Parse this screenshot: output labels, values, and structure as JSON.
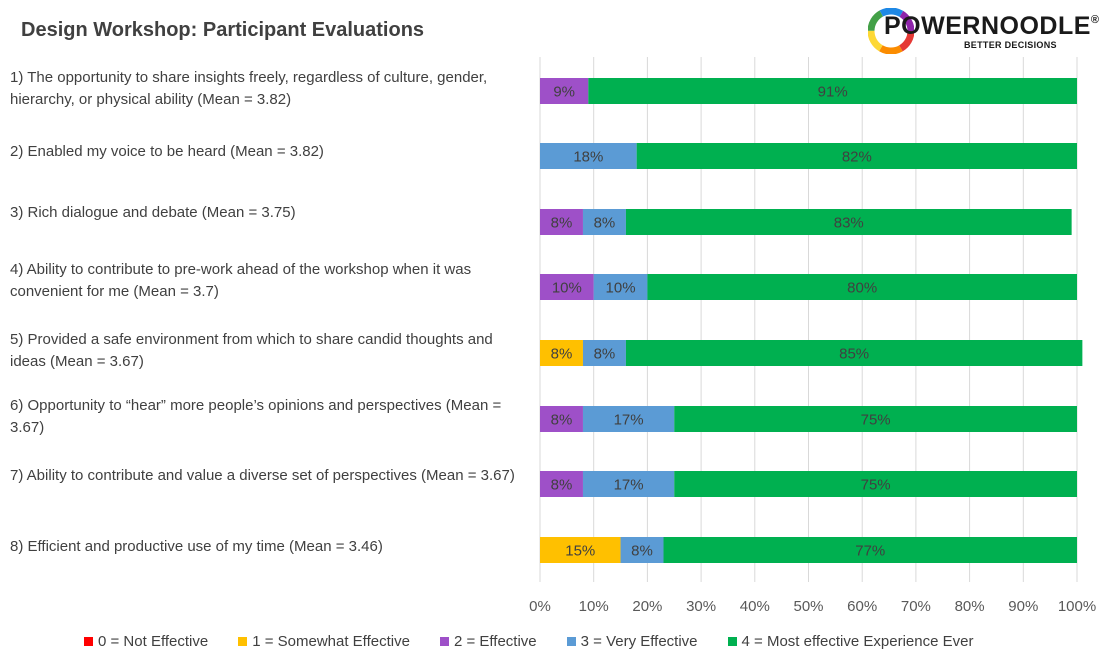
{
  "brand": {
    "name": "POWERNOODLE",
    "registered": "®",
    "tagline": "BETTER DECISIONS"
  },
  "chart_data": {
    "type": "bar",
    "orientation": "horizontal",
    "stacked": true,
    "title": "Design Workshop: Participant Evaluations",
    "categories": [
      "1) The opportunity to share insights freely, regardless of culture, gender, hierarchy, or physical ability (Mean = 3.82)",
      "2) Enabled my voice to be heard (Mean = 3.82)",
      "3) Rich dialogue and debate (Mean = 3.75)",
      "4) Ability to contribute to pre-work ahead of the workshop when it was convenient for me (Mean = 3.7)",
      "5) Provided a safe environment from which to share candid thoughts and ideas (Mean = 3.67)",
      "6) Opportunity to “hear” more people’s opinions and perspectives (Mean = 3.67)",
      "7) Ability to contribute and value a diverse set of perspectives (Mean = 3.67)",
      "8) Efficient and productive use of my time (Mean = 3.46)"
    ],
    "series": [
      {
        "name": "0 = Not Effective",
        "color": "#ff0000",
        "values": [
          0,
          0,
          0,
          0,
          0,
          0,
          0,
          0
        ]
      },
      {
        "name": "1 = Somewhat Effective",
        "color": "#ffc000",
        "values": [
          0,
          0,
          0,
          0,
          8,
          0,
          0,
          15
        ]
      },
      {
        "name": "2 = Effective",
        "color": "#9e50c8",
        "values": [
          9,
          0,
          8,
          10,
          0,
          8,
          8,
          0
        ]
      },
      {
        "name": "3 = Very Effective",
        "color": "#5b9bd5",
        "values": [
          0,
          18,
          8,
          10,
          8,
          17,
          17,
          8
        ]
      },
      {
        "name": "4 = Most effective Experience Ever",
        "color": "#00b050",
        "values": [
          91,
          82,
          83,
          80,
          85,
          75,
          75,
          77
        ]
      }
    ],
    "data_labels": [
      [
        "",
        "",
        "9%",
        "",
        "91%"
      ],
      [
        "",
        "",
        "",
        "18%",
        "82%"
      ],
      [
        "",
        "",
        "8%",
        "8%",
        "83%"
      ],
      [
        "",
        "",
        "10%",
        "10%",
        "80%"
      ],
      [
        "",
        "8%",
        "",
        "8%",
        "85%"
      ],
      [
        "",
        "",
        "8%",
        "17%",
        "75%"
      ],
      [
        "",
        "",
        "8%",
        "17%",
        "75%"
      ],
      [
        "",
        "15%",
        "",
        "8%",
        "77%"
      ]
    ],
    "x_ticks": [
      "0%",
      "10%",
      "20%",
      "30%",
      "40%",
      "50%",
      "60%",
      "70%",
      "80%",
      "90%",
      "100%"
    ],
    "xlim": [
      0,
      100
    ],
    "grid": true,
    "legend": "bottom"
  }
}
